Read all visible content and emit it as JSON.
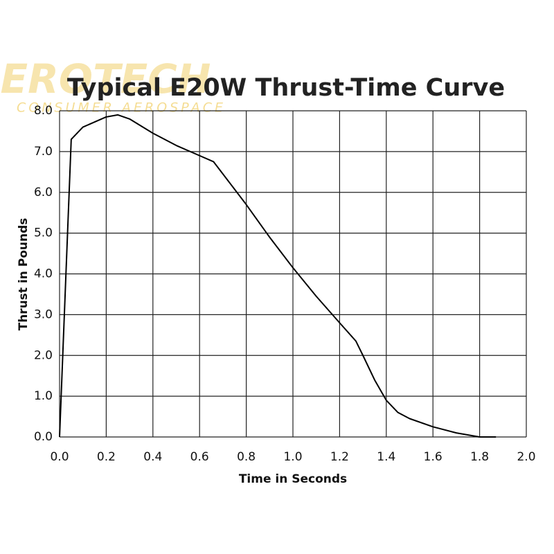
{
  "chart_data": {
    "type": "line",
    "title": "Typical E20W Thrust-Time Curve",
    "watermark": [
      "AEROTECH",
      "CONSUMER AEROSPACE"
    ],
    "x_label": "Time in Seconds",
    "y_label": "Thrust in Pounds",
    "x": [
      0,
      0.05,
      0.1,
      0.2,
      0.25,
      0.3,
      0.4,
      0.5,
      0.6,
      0.66,
      0.7,
      0.8,
      0.9,
      1.0,
      1.1,
      1.2,
      1.27,
      1.3,
      1.35,
      1.4,
      1.45,
      1.5,
      1.6,
      1.7,
      1.8,
      1.87
    ],
    "series": [
      {
        "color": "#000000",
        "values": [
          0,
          7.3,
          7.6,
          7.85,
          7.9,
          7.8,
          7.45,
          7.15,
          6.9,
          6.75,
          6.45,
          5.7,
          4.9,
          4.15,
          3.45,
          2.8,
          2.35,
          2.0,
          1.4,
          0.9,
          0.6,
          0.45,
          0.25,
          0.1,
          0.0,
          0.0
        ]
      }
    ],
    "xlim": [
      0,
      2
    ],
    "ylim": [
      0,
      8
    ],
    "xticks": [
      {
        "value": 0,
        "label": "0.0"
      },
      {
        "value": 0.2,
        "label": "0.2"
      },
      {
        "value": 0.4,
        "label": "0.4"
      },
      {
        "value": 0.6,
        "label": "0.6"
      },
      {
        "value": 0.8,
        "label": "0.8"
      },
      {
        "value": 1,
        "label": "1.0"
      },
      {
        "value": 1.2,
        "label": "1.2"
      },
      {
        "value": 1.4,
        "label": "1.4"
      },
      {
        "value": 1.6,
        "label": "1.6"
      },
      {
        "value": 1.8,
        "label": "1.8"
      },
      {
        "value": 2,
        "label": "2.0"
      }
    ],
    "yticks": [
      {
        "value": 0,
        "label": "0.0"
      },
      {
        "value": 1,
        "label": "1.0"
      },
      {
        "value": 2,
        "label": "2.0"
      },
      {
        "value": 3,
        "label": "3.0"
      },
      {
        "value": 4,
        "label": "4.0"
      },
      {
        "value": 5,
        "label": "5.0"
      },
      {
        "value": 6,
        "label": "6.0"
      },
      {
        "value": 7,
        "label": "7.0"
      },
      {
        "value": 8,
        "label": "8.0"
      }
    ],
    "grid": true
  }
}
